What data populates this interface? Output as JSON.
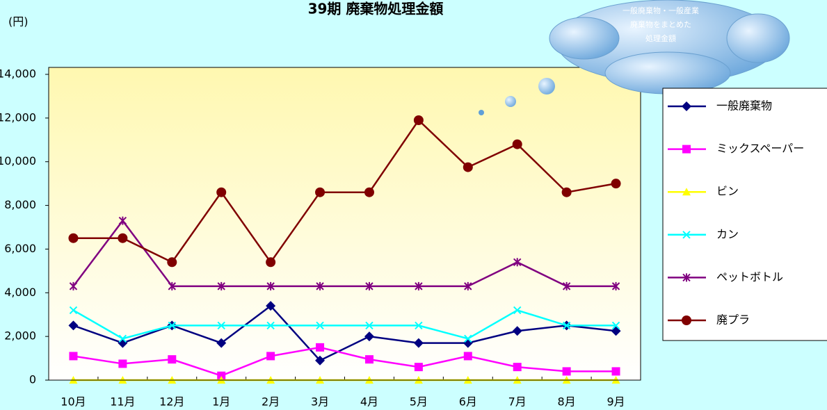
{
  "chart_data": {
    "type": "line",
    "title": "39期 廃棄物処理金額",
    "y_unit": "(円)",
    "callout": [
      "一般廃棄物・一般産業",
      "廃棄物をまとめた",
      "処理金額"
    ],
    "categories": [
      "10月",
      "11月",
      "12月",
      "1月",
      "2月",
      "3月",
      "4月",
      "5月",
      "6月",
      "7月",
      "8月",
      "9月"
    ],
    "ylim": [
      0,
      14000
    ],
    "yticks": [
      0,
      {
        "value": 2000,
        "label": "2,000"
      },
      {
        "value": 4000,
        "label": "4,000"
      },
      {
        "value": 6000,
        "label": "6,000"
      },
      {
        "value": 8000,
        "label": "8,000"
      },
      {
        "value": 10000,
        "label": "10,000"
      },
      {
        "value": 12000,
        "label": "12,000"
      },
      {
        "value": 14000,
        "label": "14,000"
      }
    ],
    "grid": false,
    "legend": "right",
    "series": [
      {
        "name": "一般廃棄物",
        "color": "#000080",
        "marker": "diamond",
        "values": [
          2500,
          1700,
          2500,
          1700,
          3400,
          900,
          2000,
          1700,
          1700,
          2250,
          2500,
          2250
        ]
      },
      {
        "name": "ミックスペーパー",
        "color": "#ff00ff",
        "marker": "square",
        "values": [
          1100,
          750,
          950,
          200,
          1100,
          1500,
          950,
          600,
          1100,
          600,
          400,
          400
        ]
      },
      {
        "name": "ビン",
        "color": "#ffff00",
        "marker": "triangle",
        "values": [
          0,
          0,
          0,
          0,
          0,
          0,
          0,
          0,
          0,
          0,
          0,
          0
        ]
      },
      {
        "name": "カン",
        "color": "#00ffff",
        "marker": "x",
        "values": [
          3200,
          1900,
          2500,
          2500,
          2500,
          2500,
          2500,
          2500,
          1900,
          3200,
          2500,
          2500
        ]
      },
      {
        "name": "ペットボトル",
        "color": "#800080",
        "marker": "star",
        "values": [
          4300,
          7300,
          4300,
          4300,
          4300,
          4300,
          4300,
          4300,
          4300,
          5400,
          4300,
          4300
        ]
      },
      {
        "name": "廃プラ",
        "color": "#800000",
        "marker": "circle",
        "values": [
          6500,
          6500,
          5400,
          8600,
          5400,
          8600,
          8600,
          11900,
          9750,
          10800,
          8600,
          9000
        ]
      }
    ]
  }
}
